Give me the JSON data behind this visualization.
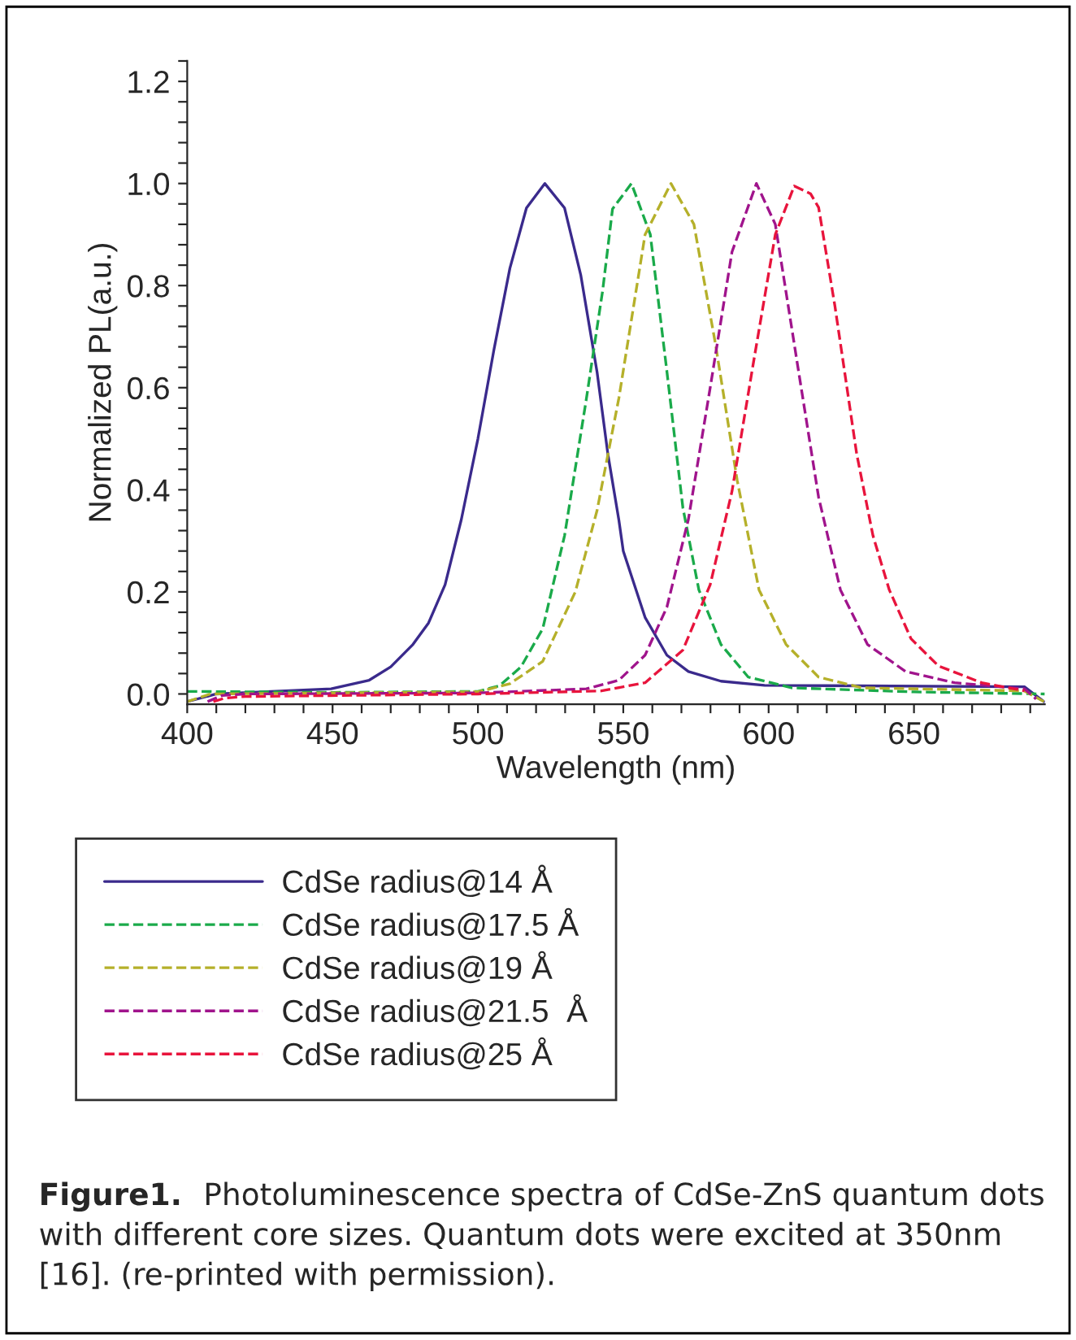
{
  "chart_data": {
    "type": "line",
    "xlabel": "Wavelength (nm)",
    "ylabel": "Normalized PL(a.u.)",
    "xlim": [
      400,
      695
    ],
    "ylim": [
      -0.02,
      1.24
    ],
    "xticks": [
      400,
      {
        "value": 410,
        "label": null
      },
      {
        "value": 420,
        "label": null
      },
      {
        "value": 430,
        "label": null
      },
      {
        "value": 440,
        "label": null
      },
      450,
      {
        "value": 460,
        "label": null
      },
      {
        "value": 470,
        "label": null
      },
      {
        "value": 480,
        "label": null
      },
      {
        "value": 490,
        "label": null
      },
      500,
      {
        "value": 510,
        "label": null
      },
      {
        "value": 520,
        "label": null
      },
      {
        "value": 530,
        "label": null
      },
      {
        "value": 540,
        "label": null
      },
      550,
      {
        "value": 560,
        "label": null
      },
      {
        "value": 570,
        "label": null
      },
      {
        "value": 580,
        "label": null
      },
      {
        "value": 590,
        "label": null
      },
      600,
      {
        "value": 610,
        "label": null
      },
      {
        "value": 620,
        "label": null
      },
      {
        "value": 630,
        "label": null
      },
      {
        "value": 640,
        "label": null
      },
      650,
      {
        "value": 660,
        "label": null
      },
      {
        "value": 670,
        "label": null
      },
      {
        "value": 680,
        "label": null
      },
      {
        "value": 690,
        "label": null
      }
    ],
    "yticks": [
      {
        "value": 0,
        "label": "0.0"
      },
      {
        "value": 0.04,
        "label": null
      },
      {
        "value": 0.08,
        "label": null
      },
      {
        "value": 0.12,
        "label": null
      },
      {
        "value": 0.16,
        "label": null
      },
      {
        "value": 0.2,
        "label": "0.2"
      },
      {
        "value": 0.24,
        "label": null
      },
      {
        "value": 0.28,
        "label": null
      },
      {
        "value": 0.32,
        "label": null
      },
      {
        "value": 0.36,
        "label": null
      },
      {
        "value": 0.4,
        "label": "0.4"
      },
      {
        "value": 0.44,
        "label": null
      },
      {
        "value": 0.48,
        "label": null
      },
      {
        "value": 0.52,
        "label": null
      },
      {
        "value": 0.56,
        "label": null
      },
      {
        "value": 0.6,
        "label": "0.6"
      },
      {
        "value": 0.64,
        "label": null
      },
      {
        "value": 0.68,
        "label": null
      },
      {
        "value": 0.72,
        "label": null
      },
      {
        "value": 0.76,
        "label": null
      },
      {
        "value": 0.8,
        "label": "0.8"
      },
      {
        "value": 0.84,
        "label": null
      },
      {
        "value": 0.88,
        "label": null
      },
      {
        "value": 0.92,
        "label": null
      },
      {
        "value": 0.96,
        "label": null
      },
      {
        "value": 1.0,
        "label": "1.0"
      },
      {
        "value": 1.04,
        "label": null
      },
      {
        "value": 1.08,
        "label": null
      },
      {
        "value": 1.12,
        "label": null
      },
      {
        "value": 1.16,
        "label": null
      },
      {
        "value": 1.2,
        "label": "1.2"
      },
      {
        "value": 1.24,
        "label": null
      }
    ],
    "grid": false,
    "legend": "bottom",
    "marker": "none",
    "series": [
      {
        "name": "CdSe radius@14 Å",
        "color": "#3a2a8c",
        "line_style": "solid",
        "x": [
          400,
          410,
          449.5,
          462.6,
          470,
          477.5,
          483,
          488.7,
          494.3,
          500,
          505.5,
          511,
          516.7,
          523,
          529.8,
          535.4,
          541,
          544.7,
          548.5,
          550,
          557.5,
          565,
          572.4,
          583.6,
          598.6,
          688,
          694.7
        ],
        "values": [
          -0.015,
          0.0,
          0.01,
          0.027,
          0.053,
          0.096,
          0.139,
          0.214,
          0.342,
          0.5,
          0.674,
          0.834,
          0.952,
          1.0,
          0.952,
          0.82,
          0.63,
          0.47,
          0.34,
          0.28,
          0.15,
          0.076,
          0.044,
          0.025,
          0.017,
          0.014,
          -0.015
        ]
      },
      {
        "name": "CdSe radius@17.5 Å",
        "color": "#1aaa4a",
        "line_style": "dashed",
        "x": [
          400,
          450,
          500,
          507.4,
          514.8,
          522.3,
          529.8,
          537.3,
          542.9,
          546.3,
          552.8,
          559.3,
          565,
          570.5,
          576,
          583.6,
          593,
          607.9,
          650,
          695
        ],
        "values": [
          0.005,
          0.003,
          0.005,
          0.016,
          0.053,
          0.128,
          0.31,
          0.578,
          0.79,
          0.95,
          1.0,
          0.9,
          0.632,
          0.365,
          0.204,
          0.097,
          0.033,
          0.012,
          0.004,
          0.0
        ]
      },
      {
        "name": "CdSe radius@19 Å",
        "color": "#b5b02a",
        "line_style": "dashed",
        "x": [
          400,
          408,
          450,
          500,
          511,
          522.3,
          533.5,
          541,
          548.5,
          557.5,
          566.4,
          574.3,
          581.7,
          589.2,
          596.7,
          606,
          617.2,
          632.2,
          688,
          694.7
        ],
        "values": [
          -0.015,
          0.0,
          0.002,
          0.004,
          0.02,
          0.064,
          0.2,
          0.36,
          0.58,
          0.9,
          1.0,
          0.92,
          0.686,
          0.418,
          0.204,
          0.097,
          0.033,
          0.012,
          0.006,
          -0.015
        ]
      },
      {
        "name": "CdSe radius@21.5  Å",
        "color": "#a0148c",
        "line_style": "dashed",
        "x": [
          407,
          412,
          420,
          500,
          537.3,
          548.5,
          557.5,
          565,
          572.4,
          579.9,
          587.4,
          595.8,
          602.3,
          609.8,
          617.2,
          624.7,
          634,
          647.1,
          664,
          688,
          692
        ],
        "values": [
          -0.015,
          -0.003,
          0.0,
          0.002,
          0.01,
          0.027,
          0.076,
          0.17,
          0.342,
          0.6,
          0.866,
          1.0,
          0.92,
          0.65,
          0.385,
          0.204,
          0.097,
          0.044,
          0.022,
          0.01,
          -0.01
        ]
      },
      {
        "name": "CdSe radius@25 Å",
        "color": "#e8143c",
        "line_style": "dashed",
        "x": [
          409,
          413,
          420,
          500,
          542.5,
          557.5,
          570.5,
          579.9,
          587.4,
          594.8,
          602.3,
          608.8,
          614.4,
          617.2,
          622.8,
          630.3,
          635.9,
          641.5,
          649,
          658.4,
          673.3,
          688
        ],
        "values": [
          -0.015,
          -0.008,
          -0.005,
          0.0,
          0.006,
          0.022,
          0.086,
          0.214,
          0.397,
          0.65,
          0.9,
          0.995,
          0.98,
          0.953,
          0.76,
          0.47,
          0.31,
          0.204,
          0.108,
          0.055,
          0.022,
          0.006
        ]
      }
    ],
    "annotations": [
      "Figure1.",
      "Photoluminescence spectra of CdSe-ZnS quantum dots with different core sizes. Quantum dots were excited at 350nm [16]. (re-printed with permission)."
    ]
  }
}
